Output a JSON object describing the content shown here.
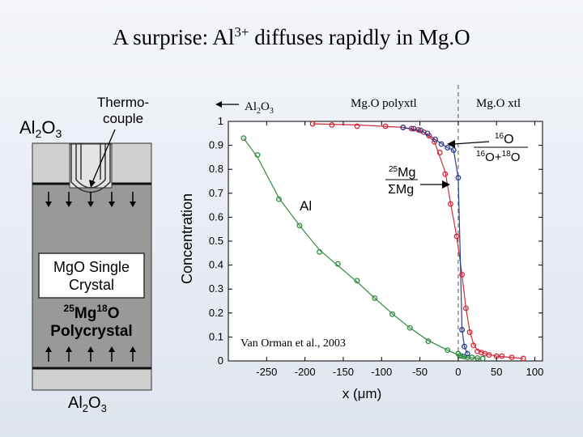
{
  "slide": {
    "title_pre": "A surprise: Al",
    "title_sup": "3+",
    "title_post": " diffuses rapidly in Mg.O"
  },
  "schematic": {
    "top_label_base": "Al",
    "top_label_sub1": "2",
    "top_label_mid": "O",
    "top_label_sub2": "3",
    "thermocouple_line1": "Thermo-",
    "thermocouple_line2": "couple",
    "single_crystal_line1": "MgO Single",
    "single_crystal_line2": "Crystal",
    "poly_iso_mg": "25",
    "poly_mg": "Mg",
    "poly_iso_o": "18",
    "poly_o": "O",
    "poly_label": "Polycrystal",
    "bottom_label_base": "Al",
    "bottom_label_sub1": "2",
    "bottom_label_mid": "O",
    "bottom_label_sub2": "3"
  },
  "annotations": {
    "al2o3_arrow_base": "Al",
    "al2o3_arrow_sub1": "2",
    "al2o3_arrow_mid": "O",
    "al2o3_arrow_sub2": "3",
    "mgo_polyxtl": "Mg.O polyxtl",
    "mgo_xtl": "Mg.O xtl",
    "citation": "Van Orman et al., 2003",
    "o_ratio_num_iso": "16",
    "o_ratio_num": "O",
    "o_ratio_den_iso1": "16",
    "o_ratio_den_mid": "O+",
    "o_ratio_den_iso2": "18",
    "o_ratio_den_o": "O",
    "mg_ratio_num_iso": "25",
    "mg_ratio_num": "Mg",
    "mg_ratio_den": "ΣMg",
    "al_series_label": "Al"
  },
  "chart_data": {
    "type": "scatter",
    "title": "",
    "xlabel": "x (μm)",
    "ylabel": "Concentration",
    "xlim": [
      -300,
      110
    ],
    "ylim": [
      0,
      1
    ],
    "x_ticks": [
      -250,
      -200,
      -150,
      -100,
      -50,
      0,
      50,
      100
    ],
    "y_ticks": [
      0,
      0.1,
      0.2,
      0.3,
      0.4,
      0.5,
      0.6,
      0.7,
      0.8,
      0.9,
      1
    ],
    "y_tick_labels": [
      "0",
      "0.1",
      "0.2",
      "0.3",
      "0.4",
      "0.5",
      "0.6",
      "0.7",
      "0.8",
      "0.9",
      "1"
    ],
    "interface_x": 0,
    "series": [
      {
        "name": "Al",
        "color": "#2e8b3e",
        "x": [
          -280,
          -262,
          -234,
          -207,
          -181,
          -157,
          -132,
          -109,
          -86,
          -63,
          -39,
          -14,
          0,
          2,
          5,
          8,
          12,
          18,
          25,
          32
        ],
        "y": [
          0.93,
          0.86,
          0.675,
          0.565,
          0.455,
          0.405,
          0.335,
          0.262,
          0.195,
          0.138,
          0.082,
          0.045,
          0.03,
          0.022,
          0.02,
          0.018,
          0.015,
          0.015,
          0.012,
          0.01
        ],
        "fit_x": [
          -280,
          -262,
          -234,
          -207,
          -181,
          -157,
          -132,
          -109,
          -86,
          -63,
          -39,
          -14,
          0,
          10,
          30
        ],
        "fit_y": [
          0.93,
          0.85,
          0.68,
          0.565,
          0.463,
          0.398,
          0.33,
          0.262,
          0.197,
          0.138,
          0.085,
          0.045,
          0.025,
          0.015,
          0.01
        ]
      },
      {
        "name": "25Mg/ΣMg",
        "color": "#d42a3a",
        "x": [
          -190,
          -165,
          -132,
          -95,
          -72,
          -61,
          -52,
          -45,
          -38,
          -31,
          -24,
          -17,
          -10,
          -2,
          5,
          10,
          15,
          20,
          25,
          30,
          35,
          40,
          50,
          57,
          70,
          85
        ],
        "y": [
          0.99,
          0.985,
          0.98,
          0.98,
          0.975,
          0.97,
          0.965,
          0.955,
          0.94,
          0.915,
          0.87,
          0.78,
          0.655,
          0.52,
          0.36,
          0.22,
          0.12,
          0.065,
          0.04,
          0.035,
          0.03,
          0.025,
          0.02,
          0.02,
          0.015,
          0.01
        ],
        "fit_x": [
          -190,
          -132,
          -72,
          -45,
          -31,
          -17,
          -10,
          -2,
          5,
          10,
          15,
          20,
          25,
          35,
          50,
          85
        ],
        "fit_y": [
          0.99,
          0.985,
          0.975,
          0.955,
          0.915,
          0.79,
          0.66,
          0.52,
          0.36,
          0.22,
          0.125,
          0.07,
          0.045,
          0.03,
          0.02,
          0.01
        ]
      },
      {
        "name": "16O/(16O+18O)",
        "color": "#2a3f8f",
        "x": [
          -72,
          -58,
          -49,
          -40,
          -30,
          -22,
          -14,
          -6,
          0,
          5,
          8,
          12
        ],
        "y": [
          0.975,
          0.97,
          0.962,
          0.95,
          0.925,
          0.905,
          0.89,
          0.88,
          0.765,
          0.13,
          0.06,
          0.03
        ],
        "fit_x": [
          -72,
          -49,
          -30,
          -14,
          -6,
          0,
          3,
          5,
          8,
          12
        ],
        "fit_y": [
          0.975,
          0.962,
          0.925,
          0.89,
          0.88,
          0.765,
          0.4,
          0.13,
          0.06,
          0.03
        ]
      }
    ]
  }
}
